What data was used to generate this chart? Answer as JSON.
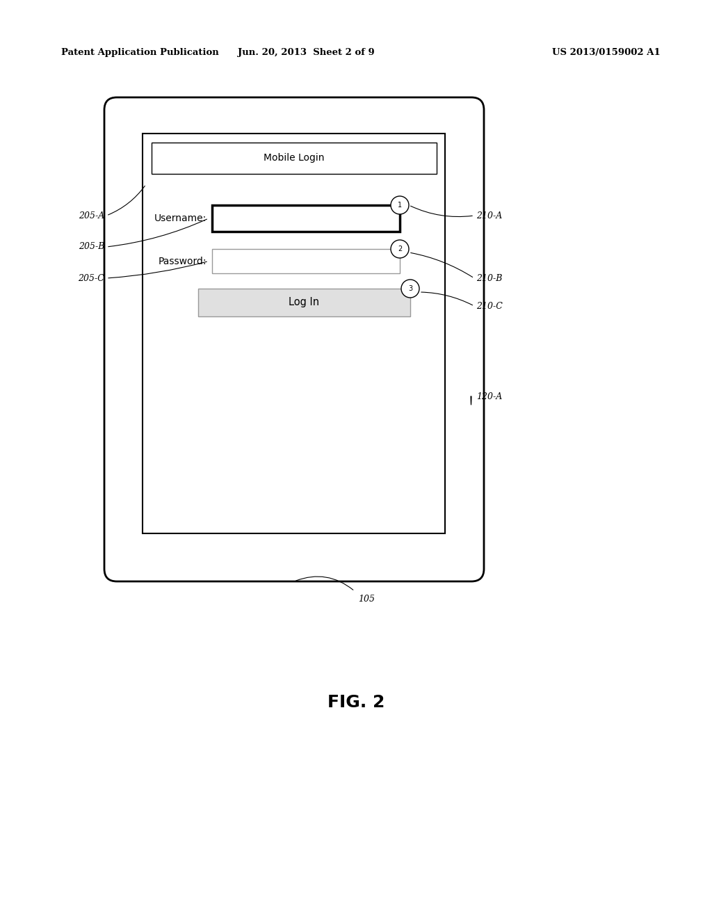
{
  "background_color": "#ffffff",
  "header_left": "Patent Application Publication",
  "header_center": "Jun. 20, 2013  Sheet 2 of 9",
  "header_right": "US 2013/0159002 A1",
  "fig_label": "FIG. 2",
  "label_105": "105",
  "label_120A": "120-A",
  "label_205A": "205-A",
  "label_205B": "205-B",
  "label_205C": "205-C",
  "label_210A": "210-A",
  "label_210B": "210-B",
  "label_210C": "210-C",
  "mobile_login_title": "Mobile Login",
  "username_label": "Username:",
  "password_label": "Password:",
  "login_button_text": "Log In"
}
